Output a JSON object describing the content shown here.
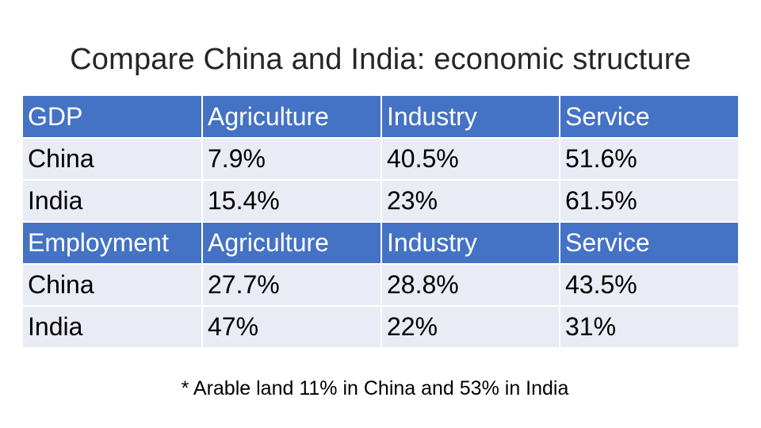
{
  "title": "Compare China and India: economic structure",
  "table": {
    "rows": [
      {
        "type": "header",
        "cells": [
          "GDP",
          "Agriculture",
          "Industry",
          "Service"
        ]
      },
      {
        "type": "body",
        "cells": [
          "China",
          "7.9%",
          "40.5%",
          "51.6%"
        ]
      },
      {
        "type": "body",
        "cells": [
          "India",
          "15.4%",
          "23%",
          "61.5%"
        ]
      },
      {
        "type": "header",
        "cells": [
          "Employment",
          "Agriculture",
          "Industry",
          "Service"
        ]
      },
      {
        "type": "body",
        "cells": [
          "China",
          "27.7%",
          "28.8%",
          "43.5%"
        ]
      },
      {
        "type": "body",
        "cells": [
          "India",
          "47%",
          "22%",
          "31%"
        ]
      }
    ]
  },
  "footnote": "* Arable land 11% in China and 53% in India",
  "colors": {
    "header_fill": "#4472c4",
    "body_fill": "#e9ebf5",
    "header_text": "#ffffff",
    "title_text": "#262626"
  }
}
